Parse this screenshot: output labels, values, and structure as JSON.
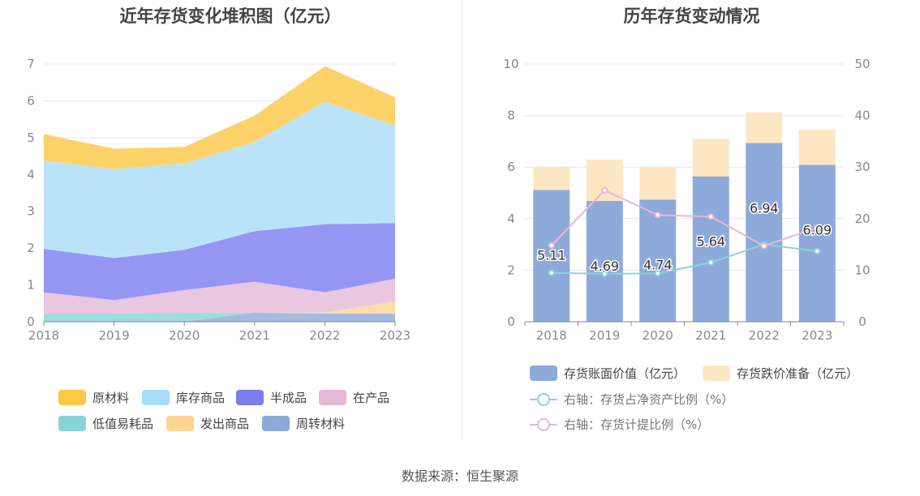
{
  "source": "数据来源：恒生聚源",
  "left_chart": {
    "title": "近年存货变化堆积图（亿元）",
    "legend": [
      {
        "label": "原材料",
        "color": "#fdc844"
      },
      {
        "label": "库存商品",
        "color": "#a9dcf7"
      },
      {
        "label": "半成品",
        "color": "#7b7cf0"
      },
      {
        "label": "在产品",
        "color": "#e6b8d8"
      },
      {
        "label": "低值易耗品",
        "color": "#86d4d6"
      },
      {
        "label": "发出商品",
        "color": "#fdd595"
      },
      {
        "label": "周转材料",
        "color": "#8eaadb"
      }
    ]
  },
  "right_chart": {
    "title": "历年存货变动情况",
    "legend": [
      {
        "label": "存货账面价值（亿元）",
        "color": "#8eaadb",
        "kind": "bar"
      },
      {
        "label": "存货跌价准备（亿元）",
        "color": "#fde7c3",
        "kind": "bar"
      },
      {
        "label": "右轴：存货占净资产比例（%）",
        "color": "#8fd3d6",
        "kind": "line"
      },
      {
        "label": "右轴：存货计提比例（%）",
        "color": "#e6b8d8",
        "kind": "line"
      }
    ]
  },
  "chart_data": [
    {
      "type": "area",
      "stacked": true,
      "title": "近年存货变化堆积图（亿元）",
      "categories": [
        "2018",
        "2019",
        "2020",
        "2021",
        "2022",
        "2023"
      ],
      "ylim": [
        0,
        7
      ],
      "yticks": [
        0,
        1,
        2,
        3,
        4,
        5,
        6,
        7
      ],
      "grid": true,
      "legend_position": "bottom",
      "series": [
        {
          "name": "周转材料",
          "color": "#8eaadb",
          "values": [
            0,
            0,
            0,
            0.25,
            0.22,
            0.22
          ]
        },
        {
          "name": "发出商品",
          "color": "#fdd595",
          "values": [
            0,
            0,
            0,
            0,
            0.03,
            0.33
          ]
        },
        {
          "name": "低值易耗品",
          "color": "#86d4d6",
          "values": [
            0.22,
            0.22,
            0.24,
            0,
            0,
            0
          ]
        },
        {
          "name": "在产品",
          "color": "#e6b8d8",
          "values": [
            0.58,
            0.37,
            0.62,
            0.84,
            0.55,
            0.62
          ]
        },
        {
          "name": "半成品",
          "color": "#7b7cf0",
          "values": [
            1.18,
            1.14,
            1.09,
            1.37,
            1.85,
            1.51
          ]
        },
        {
          "name": "库存商品",
          "color": "#a9dcf7",
          "values": [
            2.4,
            2.42,
            2.35,
            2.42,
            3.33,
            2.65
          ]
        },
        {
          "name": "原材料",
          "color": "#fdc844",
          "values": [
            0.72,
            0.55,
            0.45,
            0.72,
            0.96,
            0.77
          ]
        }
      ]
    },
    {
      "type": "bar",
      "stacked": true,
      "title": "历年存货变动情况",
      "categories": [
        "2018",
        "2019",
        "2020",
        "2021",
        "2022",
        "2023"
      ],
      "ylim": [
        0,
        10
      ],
      "yticks": [
        0,
        2,
        4,
        6,
        8,
        10
      ],
      "y2lim": [
        0,
        50
      ],
      "y2ticks": [
        0,
        10,
        20,
        30,
        40,
        50
      ],
      "grid": true,
      "legend_position": "bottom",
      "series": [
        {
          "name": "存货账面价值（亿元）",
          "kind": "bar",
          "color": "#8eaadb",
          "values": [
            5.11,
            4.69,
            4.74,
            5.64,
            6.94,
            6.09
          ],
          "labels": [
            "5.11",
            "4.69",
            "4.74",
            "5.64",
            "6.94",
            "6.09"
          ]
        },
        {
          "name": "存货跌价准备（亿元）",
          "kind": "bar",
          "color": "#fde7c3",
          "values": [
            0.89,
            1.6,
            1.24,
            1.45,
            1.19,
            1.36
          ]
        },
        {
          "name": "右轴：存货占净资产比例（%）",
          "kind": "line",
          "axis": "right",
          "color": "#8fd3d6",
          "values": [
            9.5,
            9.3,
            9.4,
            11.5,
            15.0,
            13.7
          ]
        },
        {
          "name": "右轴：存货计提比例（%）",
          "kind": "line",
          "axis": "right",
          "color": "#e6b8d8",
          "values": [
            14.8,
            25.5,
            20.7,
            20.4,
            14.7,
            18.3
          ]
        }
      ]
    }
  ]
}
